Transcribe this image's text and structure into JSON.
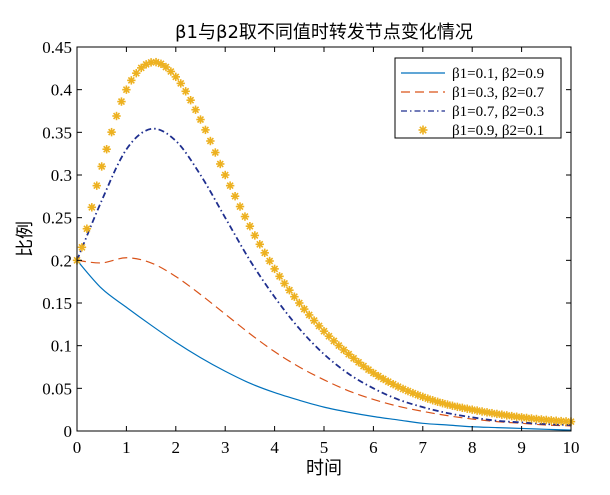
{
  "chart_data": {
    "type": "line",
    "title": "β1与β2取不同值时转发节点变化情况",
    "xlabel": "时间",
    "ylabel": "比例",
    "xlim": [
      0,
      10
    ],
    "ylim": [
      0,
      0.45
    ],
    "xticks": [
      "0",
      "1",
      "2",
      "3",
      "4",
      "5",
      "6",
      "7",
      "8",
      "9",
      "10"
    ],
    "yticks": [
      "0",
      "0.05",
      "0.1",
      "0.15",
      "0.2",
      "0.25",
      "0.3",
      "0.35",
      "0.4",
      "0.45"
    ],
    "grid": false,
    "legend_position": "top-right",
    "x": [
      0,
      0.5,
      1,
      1.5,
      2,
      2.5,
      3,
      3.5,
      4,
      4.5,
      5,
      5.5,
      6,
      6.5,
      7,
      7.5,
      8,
      8.5,
      9,
      9.5,
      10
    ],
    "series": [
      {
        "name": "β1=0.1, β2=0.9",
        "color": "#0072BD",
        "style": "solid",
        "values": [
          0.2,
          0.167,
          0.145,
          0.124,
          0.104,
          0.086,
          0.07,
          0.056,
          0.045,
          0.036,
          0.028,
          0.022,
          0.017,
          0.013,
          0.009,
          0.007,
          0.005,
          0.004,
          0.003,
          0.002,
          0.001
        ]
      },
      {
        "name": "β1=0.3, β2=0.7",
        "color": "#D95319",
        "style": "dashed",
        "values": [
          0.2,
          0.197,
          0.203,
          0.197,
          0.181,
          0.16,
          0.137,
          0.114,
          0.093,
          0.075,
          0.06,
          0.047,
          0.037,
          0.029,
          0.023,
          0.018,
          0.014,
          0.011,
          0.009,
          0.007,
          0.006
        ]
      },
      {
        "name": "β1=0.7, β2=0.3",
        "color": "#1F2F8F",
        "style": "dashdot",
        "values": [
          0.2,
          0.27,
          0.33,
          0.354,
          0.34,
          0.3,
          0.25,
          0.2,
          0.157,
          0.12,
          0.09,
          0.067,
          0.05,
          0.037,
          0.028,
          0.021,
          0.016,
          0.012,
          0.01,
          0.008,
          0.007
        ]
      },
      {
        "name": "β1=0.9, β2=0.1",
        "color": "#EDB120",
        "style": "markers",
        "values": [
          0.2,
          0.31,
          0.4,
          0.432,
          0.415,
          0.365,
          0.3,
          0.24,
          0.19,
          0.15,
          0.117,
          0.09,
          0.068,
          0.052,
          0.04,
          0.031,
          0.025,
          0.02,
          0.016,
          0.013,
          0.011
        ]
      }
    ]
  }
}
